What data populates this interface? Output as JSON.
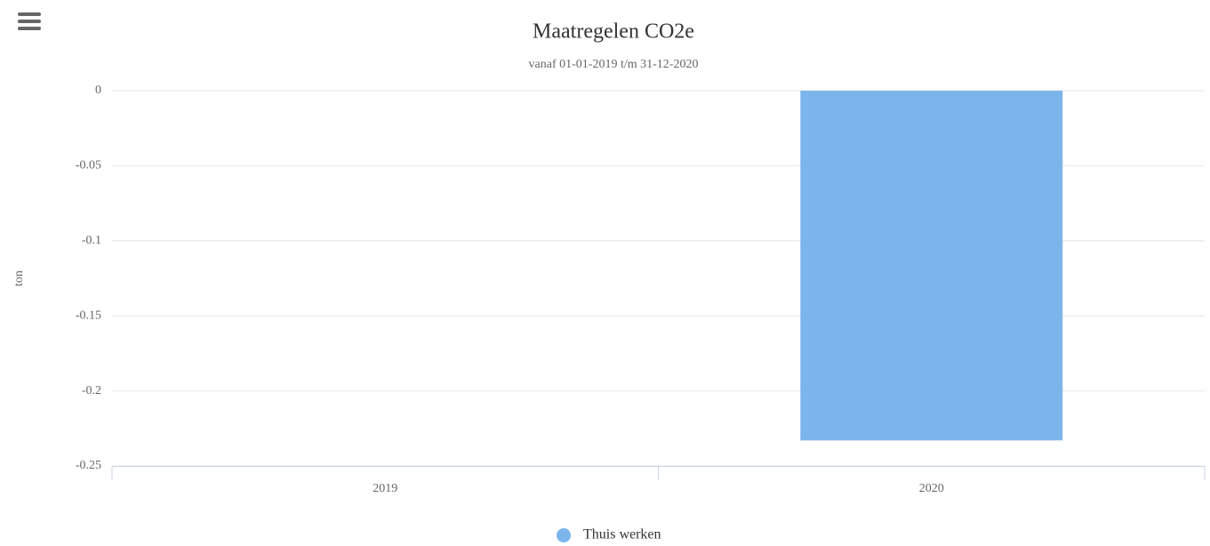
{
  "chart_data": {
    "type": "bar",
    "title": "Maatregelen CO2e",
    "subtitle": "vanaf 01-01-2019 t/m 31-12-2020",
    "y_label": "ton",
    "categories": [
      "2019",
      "2020"
    ],
    "series": [
      {
        "name": "Thuis werken",
        "color": "#7cb5ec",
        "values": [
          0,
          -0.233
        ]
      }
    ],
    "ylim": [
      -0.25,
      0
    ],
    "yticks": [
      0,
      -0.05,
      -0.1,
      -0.15,
      -0.2,
      -0.25
    ],
    "grid": true,
    "legend": "bottom"
  }
}
